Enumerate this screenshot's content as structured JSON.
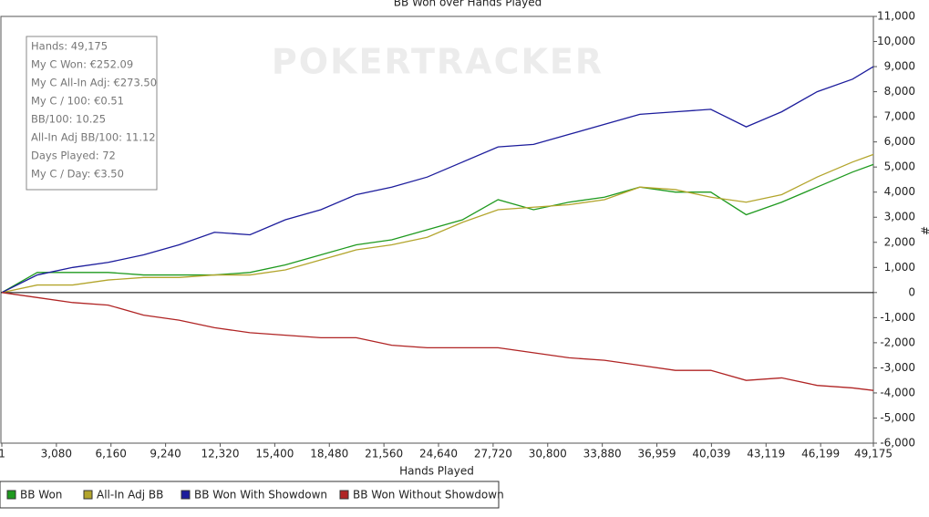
{
  "chart_data": {
    "type": "line",
    "title": "BB Won over Hands Played",
    "x_label": "Hands Played",
    "y_label": "#",
    "watermark": "POKERTRACKER",
    "annotations": [
      "Hands: 49,175",
      "My C Won: €252.09",
      "My C All-In Adj: €273.50",
      "My C / 100: €0.51",
      "BB/100: 10.25",
      "All-In Adj BB/100: 11.12",
      "Days Played: 72",
      "My C / Day: €3.50"
    ],
    "x": [
      1,
      2000,
      4000,
      6000,
      8000,
      10000,
      12000,
      14000,
      16000,
      18000,
      20000,
      22000,
      24000,
      26000,
      28000,
      30000,
      32000,
      34000,
      36000,
      38000,
      40000,
      42000,
      44000,
      46000,
      48000,
      49175
    ],
    "xlim": [
      1,
      49175
    ],
    "xticks": [
      1,
      {
        "value": 3080,
        "label": "3,080"
      },
      {
        "value": 6160,
        "label": "6,160"
      },
      {
        "value": 9240,
        "label": "9,240"
      },
      {
        "value": 12320,
        "label": "12,320"
      },
      {
        "value": 15400,
        "label": "15,400"
      },
      {
        "value": 18480,
        "label": "18,480"
      },
      {
        "value": 21560,
        "label": "21,560"
      },
      {
        "value": 24640,
        "label": "24,640"
      },
      {
        "value": 27720,
        "label": "27,720"
      },
      {
        "value": 30800,
        "label": "30,800"
      },
      {
        "value": 33880,
        "label": "33,880"
      },
      {
        "value": 36959,
        "label": "36,959"
      },
      {
        "value": 40039,
        "label": "40,039"
      },
      {
        "value": 43119,
        "label": "43,119"
      },
      {
        "value": 46199,
        "label": "46,199"
      },
      {
        "value": 49175,
        "label": "49,175"
      }
    ],
    "ylim": [
      -6000,
      11000
    ],
    "yticks": [
      {
        "value": -6000,
        "label": "-6,000"
      },
      {
        "value": -5000,
        "label": "-5,000"
      },
      {
        "value": -4000,
        "label": "-4,000"
      },
      {
        "value": -3000,
        "label": "-3,000"
      },
      {
        "value": -2000,
        "label": "-2,000"
      },
      {
        "value": -1000,
        "label": "-1,000"
      },
      0,
      {
        "value": 1000,
        "label": "1,000"
      },
      {
        "value": 2000,
        "label": "2,000"
      },
      {
        "value": 3000,
        "label": "3,000"
      },
      {
        "value": 4000,
        "label": "4,000"
      },
      {
        "value": 5000,
        "label": "5,000"
      },
      {
        "value": 6000,
        "label": "6,000"
      },
      {
        "value": 7000,
        "label": "7,000"
      },
      {
        "value": 8000,
        "label": "8,000"
      },
      {
        "value": 9000,
        "label": "9,000"
      },
      {
        "value": 10000,
        "label": "10,000"
      },
      {
        "value": 11000,
        "label": "11,000"
      }
    ],
    "series": [
      {
        "name": "BB Won",
        "color": "#1f9a1f",
        "values": [
          0,
          800,
          800,
          800,
          700,
          700,
          700,
          800,
          1100,
          1500,
          1900,
          2100,
          2500,
          2900,
          3700,
          3300,
          3600,
          3800,
          4200,
          4000,
          4000,
          3100,
          3600,
          4200,
          4800,
          5100
        ]
      },
      {
        "name": "All-In Adj BB",
        "color": "#b3a52c",
        "values": [
          0,
          300,
          300,
          500,
          600,
          600,
          700,
          700,
          900,
          1300,
          1700,
          1900,
          2200,
          2800,
          3300,
          3400,
          3500,
          3700,
          4200,
          4100,
          3800,
          3600,
          3900,
          4600,
          5200,
          5500
        ]
      },
      {
        "name": "BB Won With Showdown",
        "color": "#1c1c9c",
        "values": [
          0,
          700,
          1000,
          1200,
          1500,
          1900,
          2400,
          2300,
          2900,
          3300,
          3900,
          4200,
          4600,
          5200,
          5800,
          5900,
          6300,
          6700,
          7100,
          7200,
          7300,
          6600,
          7200,
          8000,
          8500,
          9000
        ]
      },
      {
        "name": "BB Won Without Showdown",
        "color": "#b02424",
        "values": [
          0,
          -200,
          -400,
          -500,
          -900,
          -1100,
          -1400,
          -1600,
          -1700,
          -1800,
          -1800,
          -2100,
          -2200,
          -2200,
          -2200,
          -2400,
          -2600,
          -2700,
          -2900,
          -3100,
          -3100,
          -3500,
          -3400,
          -3700,
          -3800,
          -3900
        ]
      }
    ]
  }
}
